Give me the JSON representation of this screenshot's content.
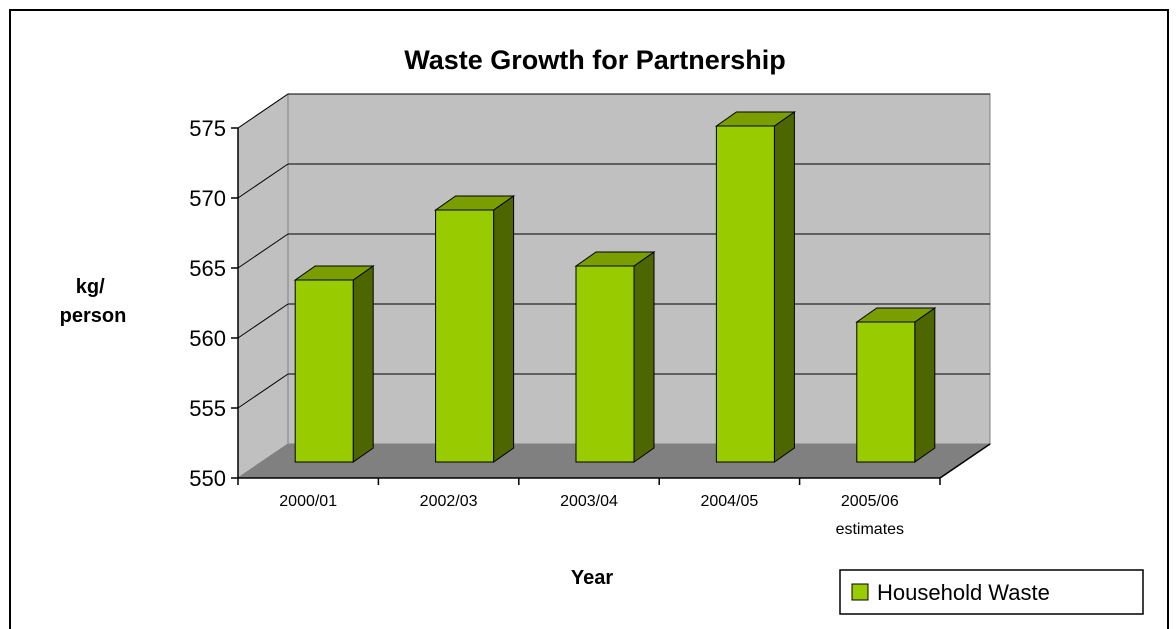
{
  "chart_data": {
    "type": "bar",
    "title": "Waste Growth for Partnership",
    "xlabel": "Year",
    "ylabel_lines": [
      "kg/",
      "person"
    ],
    "categories": [
      {
        "lines": [
          "2000/01"
        ]
      },
      {
        "lines": [
          "2002/03"
        ]
      },
      {
        "lines": [
          "2003/04"
        ]
      },
      {
        "lines": [
          "2004/05"
        ]
      },
      {
        "lines": [
          "2005/06",
          "estimates"
        ]
      }
    ],
    "series": [
      {
        "name": "Household Waste",
        "values": [
          563,
          568,
          564,
          574,
          560
        ]
      }
    ],
    "ylim": [
      550,
      575
    ],
    "yticks": [
      550,
      555,
      560,
      565,
      570,
      575
    ],
    "grid": true,
    "legend_position": "bottom-right",
    "colors": {
      "bar_front": "#99CC00",
      "bar_top": "#7A9E00",
      "bar_side": "#4D6600",
      "back_wall": "#C0C0C0",
      "floor": "#808080",
      "grid": "#000000"
    }
  }
}
